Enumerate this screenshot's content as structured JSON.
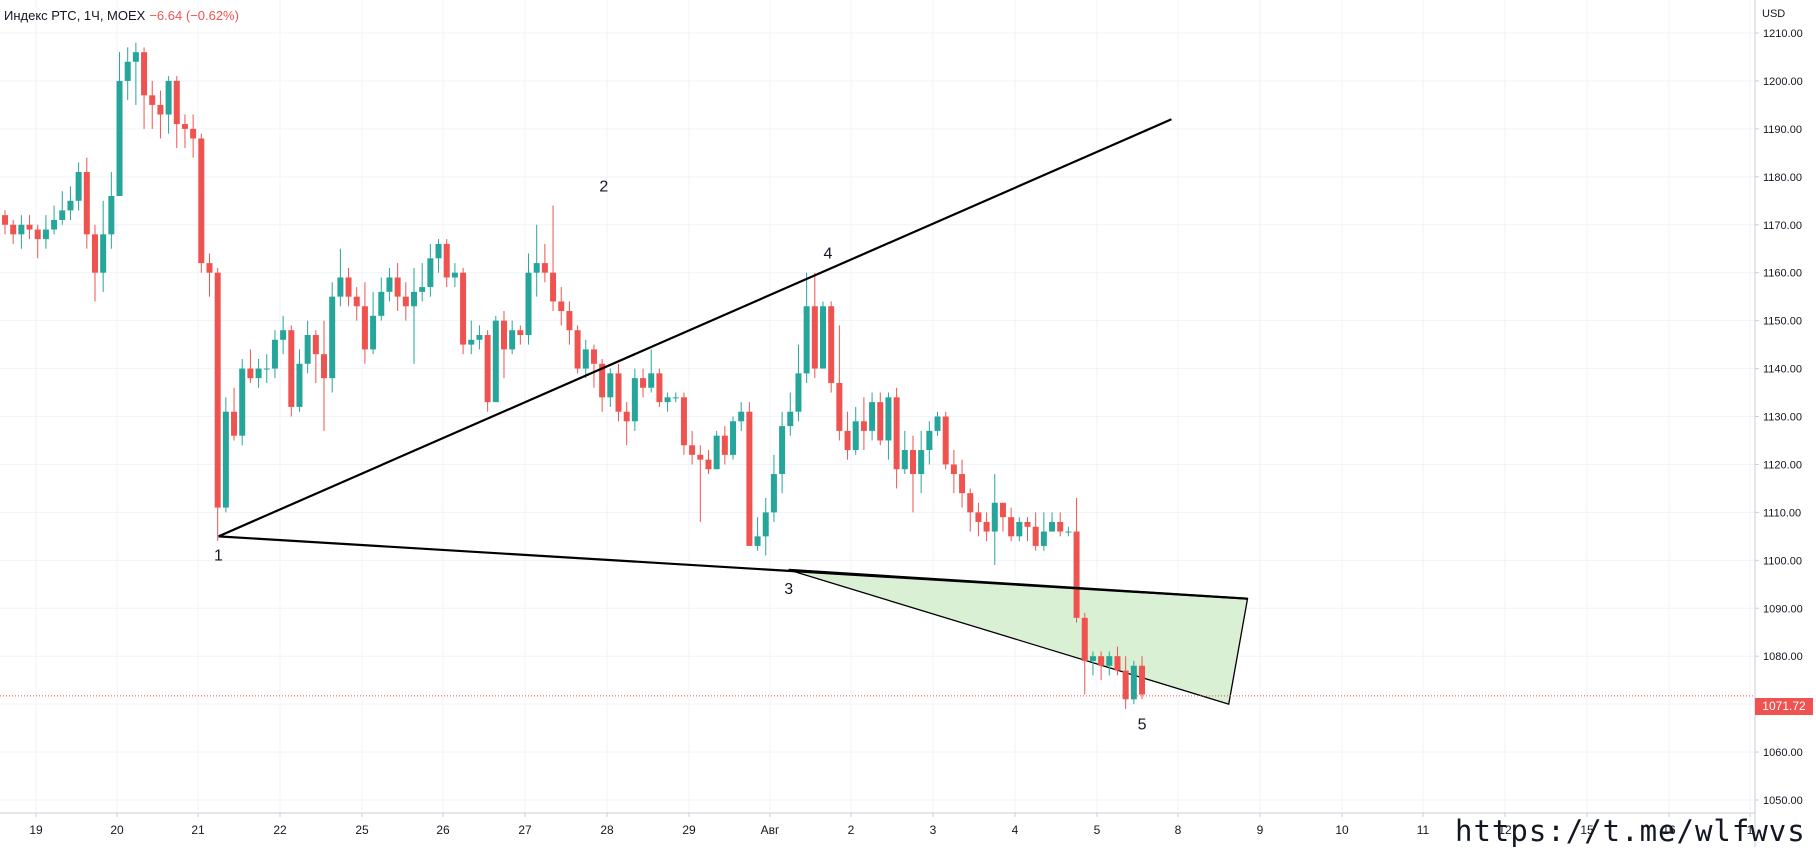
{
  "legend": {
    "symbol": "Индекс РТС, 1Ч, MOEX",
    "change": "−6.64 (−0.62%)"
  },
  "currency_label": "USD",
  "watermark": "https://t.me/wlfwvs",
  "last_price": "1071.72",
  "colors": {
    "up": "#26a69a",
    "down": "#ef5350",
    "line": "#000000",
    "triangle_fill": "#d9f0d4",
    "grid": "#f0f3fa",
    "last_price_line": "#ef5350"
  },
  "chart_data": {
    "type": "candlestick",
    "ylim": [
      1046,
      1212
    ],
    "y_ticks": [
      "1210.00",
      "1200.00",
      "1190.00",
      "1180.00",
      "1170.00",
      "1160.00",
      "1150.00",
      "1140.00",
      "1130.00",
      "1120.00",
      "1110.00",
      "1100.00",
      "1090.00",
      "1080.00",
      "1070.00",
      "1060.00",
      "1050.00"
    ],
    "x_ticks": [
      "19",
      "20",
      "21",
      "22",
      "25",
      "26",
      "27",
      "28",
      "29",
      "Авг",
      "2",
      "3",
      "4",
      "5",
      "8",
      "9",
      "10",
      "11",
      "12",
      "15",
      "16",
      "1"
    ],
    "grid": true,
    "wave_labels": [
      "1",
      "2",
      "3",
      "4",
      "5"
    ],
    "candles": [
      [
        1172,
        1170,
        1173,
        1168
      ],
      [
        1170,
        1168,
        1171,
        1166
      ],
      [
        1168,
        1170,
        1172,
        1165
      ],
      [
        1170,
        1169,
        1172,
        1167
      ],
      [
        1169,
        1167,
        1170,
        1163
      ],
      [
        1167,
        1169,
        1172,
        1165
      ],
      [
        1169,
        1171,
        1174,
        1168
      ],
      [
        1171,
        1173,
        1177,
        1170
      ],
      [
        1173,
        1175,
        1178,
        1171
      ],
      [
        1175,
        1181,
        1183,
        1173
      ],
      [
        1181,
        1168,
        1184,
        1165
      ],
      [
        1168,
        1160,
        1170,
        1154
      ],
      [
        1160,
        1168,
        1175,
        1156
      ],
      [
        1168,
        1176,
        1181,
        1165
      ],
      [
        1176,
        1200,
        1206,
        1176
      ],
      [
        1200,
        1204,
        1207,
        1196
      ],
      [
        1204,
        1206,
        1208,
        1195
      ],
      [
        1206,
        1197,
        1207,
        1190
      ],
      [
        1197,
        1195,
        1200,
        1190
      ],
      [
        1195,
        1193,
        1198,
        1188
      ],
      [
        1193,
        1200,
        1201,
        1189
      ],
      [
        1200,
        1191,
        1201,
        1186
      ],
      [
        1191,
        1190,
        1193,
        1186
      ],
      [
        1190,
        1188,
        1193,
        1184
      ],
      [
        1188,
        1162,
        1189,
        1160
      ],
      [
        1162,
        1160,
        1164,
        1155
      ],
      [
        1160,
        1111,
        1161,
        1104
      ],
      [
        1111,
        1131,
        1134,
        1110
      ],
      [
        1131,
        1126,
        1136,
        1125
      ],
      [
        1126,
        1140,
        1142,
        1124
      ],
      [
        1140,
        1138,
        1144,
        1137
      ],
      [
        1138,
        1140,
        1142,
        1136
      ],
      [
        1140,
        1140,
        1143,
        1137
      ],
      [
        1140,
        1146,
        1148,
        1138
      ],
      [
        1146,
        1148,
        1151,
        1143
      ],
      [
        1148,
        1132,
        1149,
        1130
      ],
      [
        1132,
        1141,
        1144,
        1131
      ],
      [
        1141,
        1147,
        1150,
        1139
      ],
      [
        1147,
        1143,
        1148,
        1137
      ],
      [
        1143,
        1138,
        1150,
        1127
      ],
      [
        1138,
        1155,
        1158,
        1135
      ],
      [
        1155,
        1159,
        1165,
        1153
      ],
      [
        1159,
        1155,
        1161,
        1153
      ],
      [
        1155,
        1153,
        1157,
        1150
      ],
      [
        1153,
        1144,
        1158,
        1141
      ],
      [
        1144,
        1151,
        1156,
        1143
      ],
      [
        1151,
        1156,
        1159,
        1150
      ],
      [
        1156,
        1159,
        1161,
        1154
      ],
      [
        1159,
        1155,
        1162,
        1152
      ],
      [
        1155,
        1153,
        1158,
        1150
      ],
      [
        1153,
        1156,
        1161,
        1141
      ],
      [
        1156,
        1157,
        1162,
        1154
      ],
      [
        1157,
        1163,
        1166,
        1155
      ],
      [
        1163,
        1166,
        1167,
        1160
      ],
      [
        1166,
        1159,
        1167,
        1157
      ],
      [
        1159,
        1160,
        1162,
        1157
      ],
      [
        1160,
        1145,
        1161,
        1143
      ],
      [
        1145,
        1146,
        1150,
        1143
      ],
      [
        1146,
        1147,
        1149,
        1144
      ],
      [
        1147,
        1133,
        1148,
        1131
      ],
      [
        1133,
        1150,
        1151,
        1133
      ],
      [
        1150,
        1144,
        1152,
        1138
      ],
      [
        1144,
        1148,
        1150,
        1143
      ],
      [
        1148,
        1147,
        1149,
        1145
      ],
      [
        1147,
        1160,
        1164,
        1145
      ],
      [
        1160,
        1162,
        1170,
        1155
      ],
      [
        1162,
        1160,
        1166,
        1158
      ],
      [
        1160,
        1154,
        1174,
        1152
      ],
      [
        1154,
        1152,
        1157,
        1149
      ],
      [
        1152,
        1148,
        1154,
        1145
      ],
      [
        1148,
        1140,
        1149,
        1139
      ],
      [
        1140,
        1144,
        1146,
        1138
      ],
      [
        1144,
        1141,
        1145,
        1136
      ],
      [
        1141,
        1134,
        1142,
        1131
      ],
      [
        1134,
        1139,
        1140,
        1132
      ],
      [
        1139,
        1131,
        1141,
        1129
      ],
      [
        1131,
        1129,
        1133,
        1124
      ],
      [
        1129,
        1138,
        1140,
        1127
      ],
      [
        1138,
        1136,
        1140,
        1134
      ],
      [
        1136,
        1139,
        1144,
        1135
      ],
      [
        1139,
        1133,
        1140,
        1132
      ],
      [
        1133,
        1134,
        1135,
        1131
      ],
      [
        1134,
        1134,
        1135,
        1133
      ],
      [
        1134,
        1124,
        1135,
        1122
      ],
      [
        1124,
        1122,
        1127,
        1120
      ],
      [
        1122,
        1121,
        1124,
        1108
      ],
      [
        1121,
        1119,
        1123,
        1118
      ],
      [
        1119,
        1126,
        1127,
        1121
      ],
      [
        1126,
        1122,
        1128,
        1120
      ],
      [
        1122,
        1129,
        1130,
        1121
      ],
      [
        1129,
        1131,
        1133,
        1127
      ],
      [
        1131,
        1103,
        1133,
        1103
      ],
      [
        1103,
        1105,
        1109,
        1102
      ],
      [
        1105,
        1110,
        1113,
        1101
      ],
      [
        1110,
        1118,
        1122,
        1108
      ],
      [
        1118,
        1128,
        1131,
        1114
      ],
      [
        1128,
        1131,
        1135,
        1126
      ],
      [
        1131,
        1139,
        1145,
        1129
      ],
      [
        1139,
        1153,
        1160,
        1137
      ],
      [
        1153,
        1140,
        1160,
        1138
      ],
      [
        1140,
        1153,
        1154,
        1140
      ],
      [
        1153,
        1137,
        1154,
        1135
      ],
      [
        1137,
        1127,
        1149,
        1125
      ],
      [
        1127,
        1123,
        1131,
        1121
      ],
      [
        1123,
        1129,
        1132,
        1122
      ],
      [
        1129,
        1127,
        1134,
        1123
      ],
      [
        1127,
        1133,
        1135,
        1125
      ],
      [
        1133,
        1125,
        1135,
        1124
      ],
      [
        1125,
        1134,
        1135,
        1121
      ],
      [
        1134,
        1119,
        1136,
        1115
      ],
      [
        1119,
        1123,
        1127,
        1118
      ],
      [
        1123,
        1118,
        1126,
        1110
      ],
      [
        1118,
        1123,
        1127,
        1114
      ],
      [
        1123,
        1127,
        1129,
        1120
      ],
      [
        1127,
        1130,
        1131,
        1126
      ],
      [
        1130,
        1120,
        1131,
        1119
      ],
      [
        1120,
        1118,
        1123,
        1114
      ],
      [
        1118,
        1114,
        1121,
        1111
      ],
      [
        1114,
        1110,
        1115,
        1106
      ],
      [
        1110,
        1108,
        1112,
        1105
      ],
      [
        1108,
        1106,
        1110,
        1104
      ],
      [
        1106,
        1112,
        1118,
        1099
      ],
      [
        1112,
        1109,
        1112,
        1106
      ],
      [
        1109,
        1105,
        1111,
        1104
      ],
      [
        1105,
        1108,
        1109,
        1104
      ],
      [
        1108,
        1107,
        1109,
        1104
      ],
      [
        1107,
        1103,
        1110,
        1102
      ],
      [
        1103,
        1106,
        1110,
        1102
      ],
      [
        1106,
        1108,
        1110,
        1106
      ],
      [
        1108,
        1106,
        1110,
        1105
      ],
      [
        1106,
        1106,
        1107,
        1105
      ],
      [
        1106,
        1088,
        1113,
        1087
      ],
      [
        1088,
        1079,
        1089,
        1072
      ],
      [
        1079,
        1080,
        1081,
        1076
      ],
      [
        1080,
        1078,
        1081,
        1075
      ],
      [
        1078,
        1080,
        1081,
        1076
      ],
      [
        1080,
        1077,
        1082,
        1076
      ],
      [
        1077,
        1071,
        1080,
        1069
      ],
      [
        1071,
        1078,
        1079,
        1070
      ],
      [
        1078,
        1072,
        1080,
        1071
      ]
    ],
    "trendlines": [
      {
        "from": [
          26.1,
          1105
        ],
        "to": [
          142.6,
          1192
        ]
      },
      {
        "from": [
          26.1,
          1105
        ],
        "to": [
          151.9,
          1092
        ]
      },
      {
        "from": [
          95.8,
          1098
        ],
        "to": [
          151.9,
          1092
        ]
      }
    ],
    "triangle": [
      [
        95.8,
        1098
      ],
      [
        151.9,
        1092
      ],
      [
        149.6,
        1070
      ]
    ],
    "points": [
      [
        26.1,
        1105
      ],
      [
        73.2,
        1174
      ],
      [
        95.8,
        1098
      ],
      [
        100.6,
        1160
      ],
      [
        139.0,
        1071
      ]
    ]
  }
}
